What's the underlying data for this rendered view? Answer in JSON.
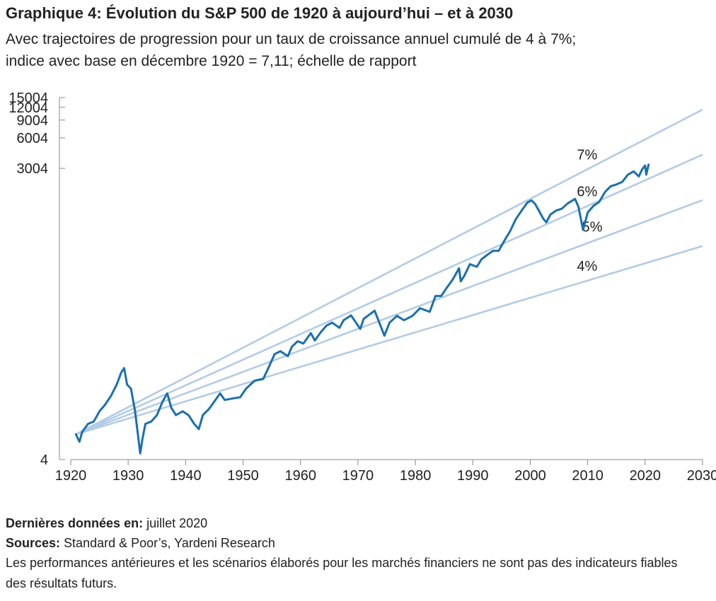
{
  "header": {
    "title": "Graphique 4: Évolution du S&P 500 de 1920 à aujourd’hui – et à 2030",
    "subtitle_line1": "Avec trajectoires de progression pour un taux de croissance annuel cumulé de 4 à 7%;",
    "subtitle_line2": "indice avec base en décembre 1920 = 7,11; échelle de rapport"
  },
  "footer": {
    "last_data_label": "Dernières données en:",
    "last_data_value": "juillet 2020",
    "sources_label": "Sources:",
    "sources_value": "Standard & Poor’s, Yardeni Research",
    "disclaimer": "Les performances antérieures et les scénarios élaborés pour les marchés financiers ne sont pas des indicateurs fiables des résultats futurs."
  },
  "chart_data": {
    "type": "line",
    "y_scale": "log",
    "xlim": [
      1920,
      2030
    ],
    "ylim": [
      4,
      15004
    ],
    "x_ticks": [
      "1920",
      "1930",
      "1940",
      "1950",
      "1960",
      "1970",
      "1980",
      "1990",
      "2000",
      "2010",
      "2020",
      "2030"
    ],
    "y_ticks": [
      "4",
      "3004",
      "6004",
      "9004",
      "12004",
      "15004"
    ],
    "colors": {
      "index": "#1b6fae",
      "trend": "#b3cbe6",
      "axis": "#888888"
    },
    "base": {
      "x": 1920.9,
      "y": 7.11
    },
    "series": [
      {
        "name": "S&P 500",
        "x": [
          1920.9,
          1921.5,
          1922.0,
          1923.0,
          1924.0,
          1925.0,
          1926.0,
          1927.0,
          1928.0,
          1928.8,
          1929.3,
          1929.8,
          1930.5,
          1931.2,
          1931.7,
          1932.1,
          1932.5,
          1933.0,
          1934.0,
          1935.0,
          1936.0,
          1936.8,
          1937.5,
          1938.3,
          1939.5,
          1940.5,
          1941.5,
          1942.3,
          1943.0,
          1944.0,
          1945.0,
          1946.0,
          1946.8,
          1948.0,
          1949.5,
          1950.5,
          1952.0,
          1953.5,
          1954.5,
          1955.5,
          1956.5,
          1957.8,
          1958.5,
          1959.5,
          1960.5,
          1961.8,
          1962.5,
          1963.5,
          1964.5,
          1965.5,
          1966.8,
          1967.5,
          1968.8,
          1970.4,
          1971.0,
          1972.9,
          1974.6,
          1975.5,
          1976.8,
          1978.0,
          1979.5,
          1980.8,
          1982.5,
          1983.5,
          1984.5,
          1985.5,
          1986.5,
          1987.6,
          1987.9,
          1988.5,
          1989.5,
          1990.7,
          1991.5,
          1992.5,
          1993.5,
          1994.5,
          1995.5,
          1996.5,
          1997.5,
          1998.5,
          1999.5,
          2000.2,
          2000.8,
          2001.5,
          2002.3,
          2002.8,
          2003.5,
          2004.5,
          2005.5,
          2006.5,
          2007.8,
          2008.4,
          2009.2,
          2010.0,
          2011.0,
          2012.0,
          2013.0,
          2014.0,
          2015.0,
          2016.0,
          2017.0,
          2018.0,
          2018.9,
          2019.5,
          2020.0,
          2020.2,
          2020.6
        ],
        "values": [
          7.11,
          6.0,
          7.5,
          9.0,
          9.5,
          12.0,
          14.0,
          17.0,
          22.0,
          29.0,
          32.0,
          22.0,
          20.0,
          12.0,
          7.0,
          4.6,
          6.5,
          9.0,
          9.5,
          11.0,
          15.0,
          18.0,
          13.0,
          11.0,
          12.0,
          11.0,
          9.0,
          8.0,
          11.0,
          12.5,
          15.0,
          18.0,
          15.5,
          16.0,
          16.5,
          20.0,
          24.0,
          25.0,
          33.0,
          44.0,
          47.0,
          42.0,
          52.0,
          59.0,
          56.0,
          71.0,
          60.0,
          72.0,
          84.0,
          90.0,
          80.0,
          95.0,
          106.0,
          78.0,
          98.0,
          118.0,
          67.0,
          90.0,
          105.0,
          95.0,
          105.0,
          125.0,
          115.0,
          165.0,
          165.0,
          200.0,
          240.0,
          310.0,
          230.0,
          260.0,
          340.0,
          320.0,
          380.0,
          420.0,
          460.0,
          460.0,
          580.0,
          720.0,
          950.0,
          1150.0,
          1380.0,
          1450.0,
          1350.0,
          1150.0,
          950.0,
          880.0,
          1050.0,
          1150.0,
          1200.0,
          1350.0,
          1500.0,
          1250.0,
          740.0,
          1100.0,
          1280.0,
          1400.0,
          1750.0,
          2000.0,
          2080.0,
          2200.0,
          2600.0,
          2800.0,
          2500.0,
          2950.0,
          3200.0,
          2600.0,
          3270.0
        ]
      }
    ],
    "trend_lines": [
      {
        "label": "7%",
        "rate": 0.07
      },
      {
        "label": "6%",
        "rate": 0.06
      },
      {
        "label": "5%",
        "rate": 0.05
      },
      {
        "label": "4%",
        "rate": 0.04
      }
    ]
  }
}
